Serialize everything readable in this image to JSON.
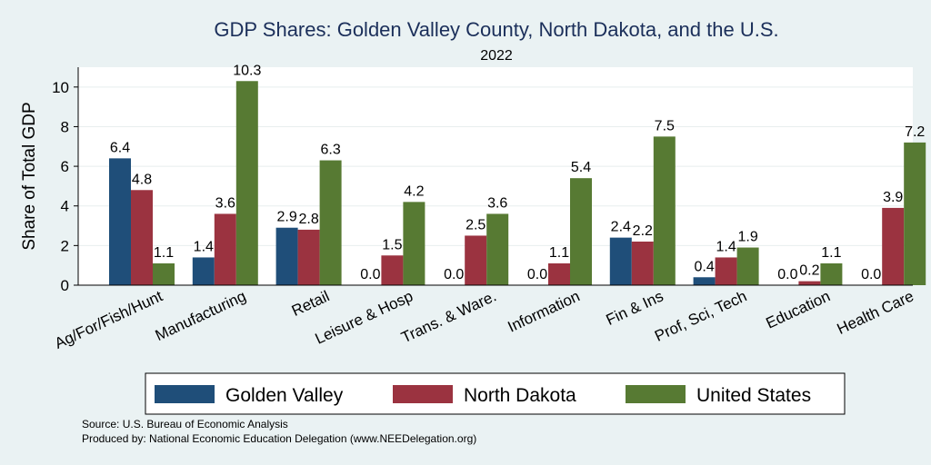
{
  "chart_data": {
    "type": "bar",
    "title": "GDP Shares: Golden Valley County, North Dakota, and the U.S.",
    "subtitle": "2022",
    "ylabel": "Share of Total GDP",
    "xlabel": "",
    "ylim": [
      0,
      11
    ],
    "yticks": [
      0,
      2,
      4,
      6,
      8,
      10
    ],
    "categories": [
      "Ag/For/Fish/Hunt",
      "Manufacturing",
      "Retail",
      "Leisure & Hosp",
      "Trans. & Ware.",
      "Information",
      "Fin & Ins",
      "Prof, Sci, Tech",
      "Education",
      "Health Care"
    ],
    "series": [
      {
        "name": "Golden Valley",
        "color": "#1f4e79",
        "values": [
          6.4,
          1.4,
          2.9,
          0.0,
          0.0,
          0.0,
          2.4,
          0.4,
          0.0,
          0.0
        ]
      },
      {
        "name": "North Dakota",
        "color": "#9b3340",
        "values": [
          4.8,
          3.6,
          2.8,
          1.5,
          2.5,
          1.1,
          2.2,
          1.4,
          0.2,
          3.9
        ]
      },
      {
        "name": "United States",
        "color": "#577a33",
        "values": [
          1.1,
          10.3,
          6.3,
          4.2,
          3.6,
          5.4,
          7.5,
          1.9,
          1.1,
          7.2
        ]
      }
    ],
    "legend_position": "bottom",
    "grid": true
  },
  "source": "Source: U.S. Bureau of Economic Analysis",
  "produced_by": "Produced by: National Economic Education Delegation (www.NEEDelegation.org)"
}
